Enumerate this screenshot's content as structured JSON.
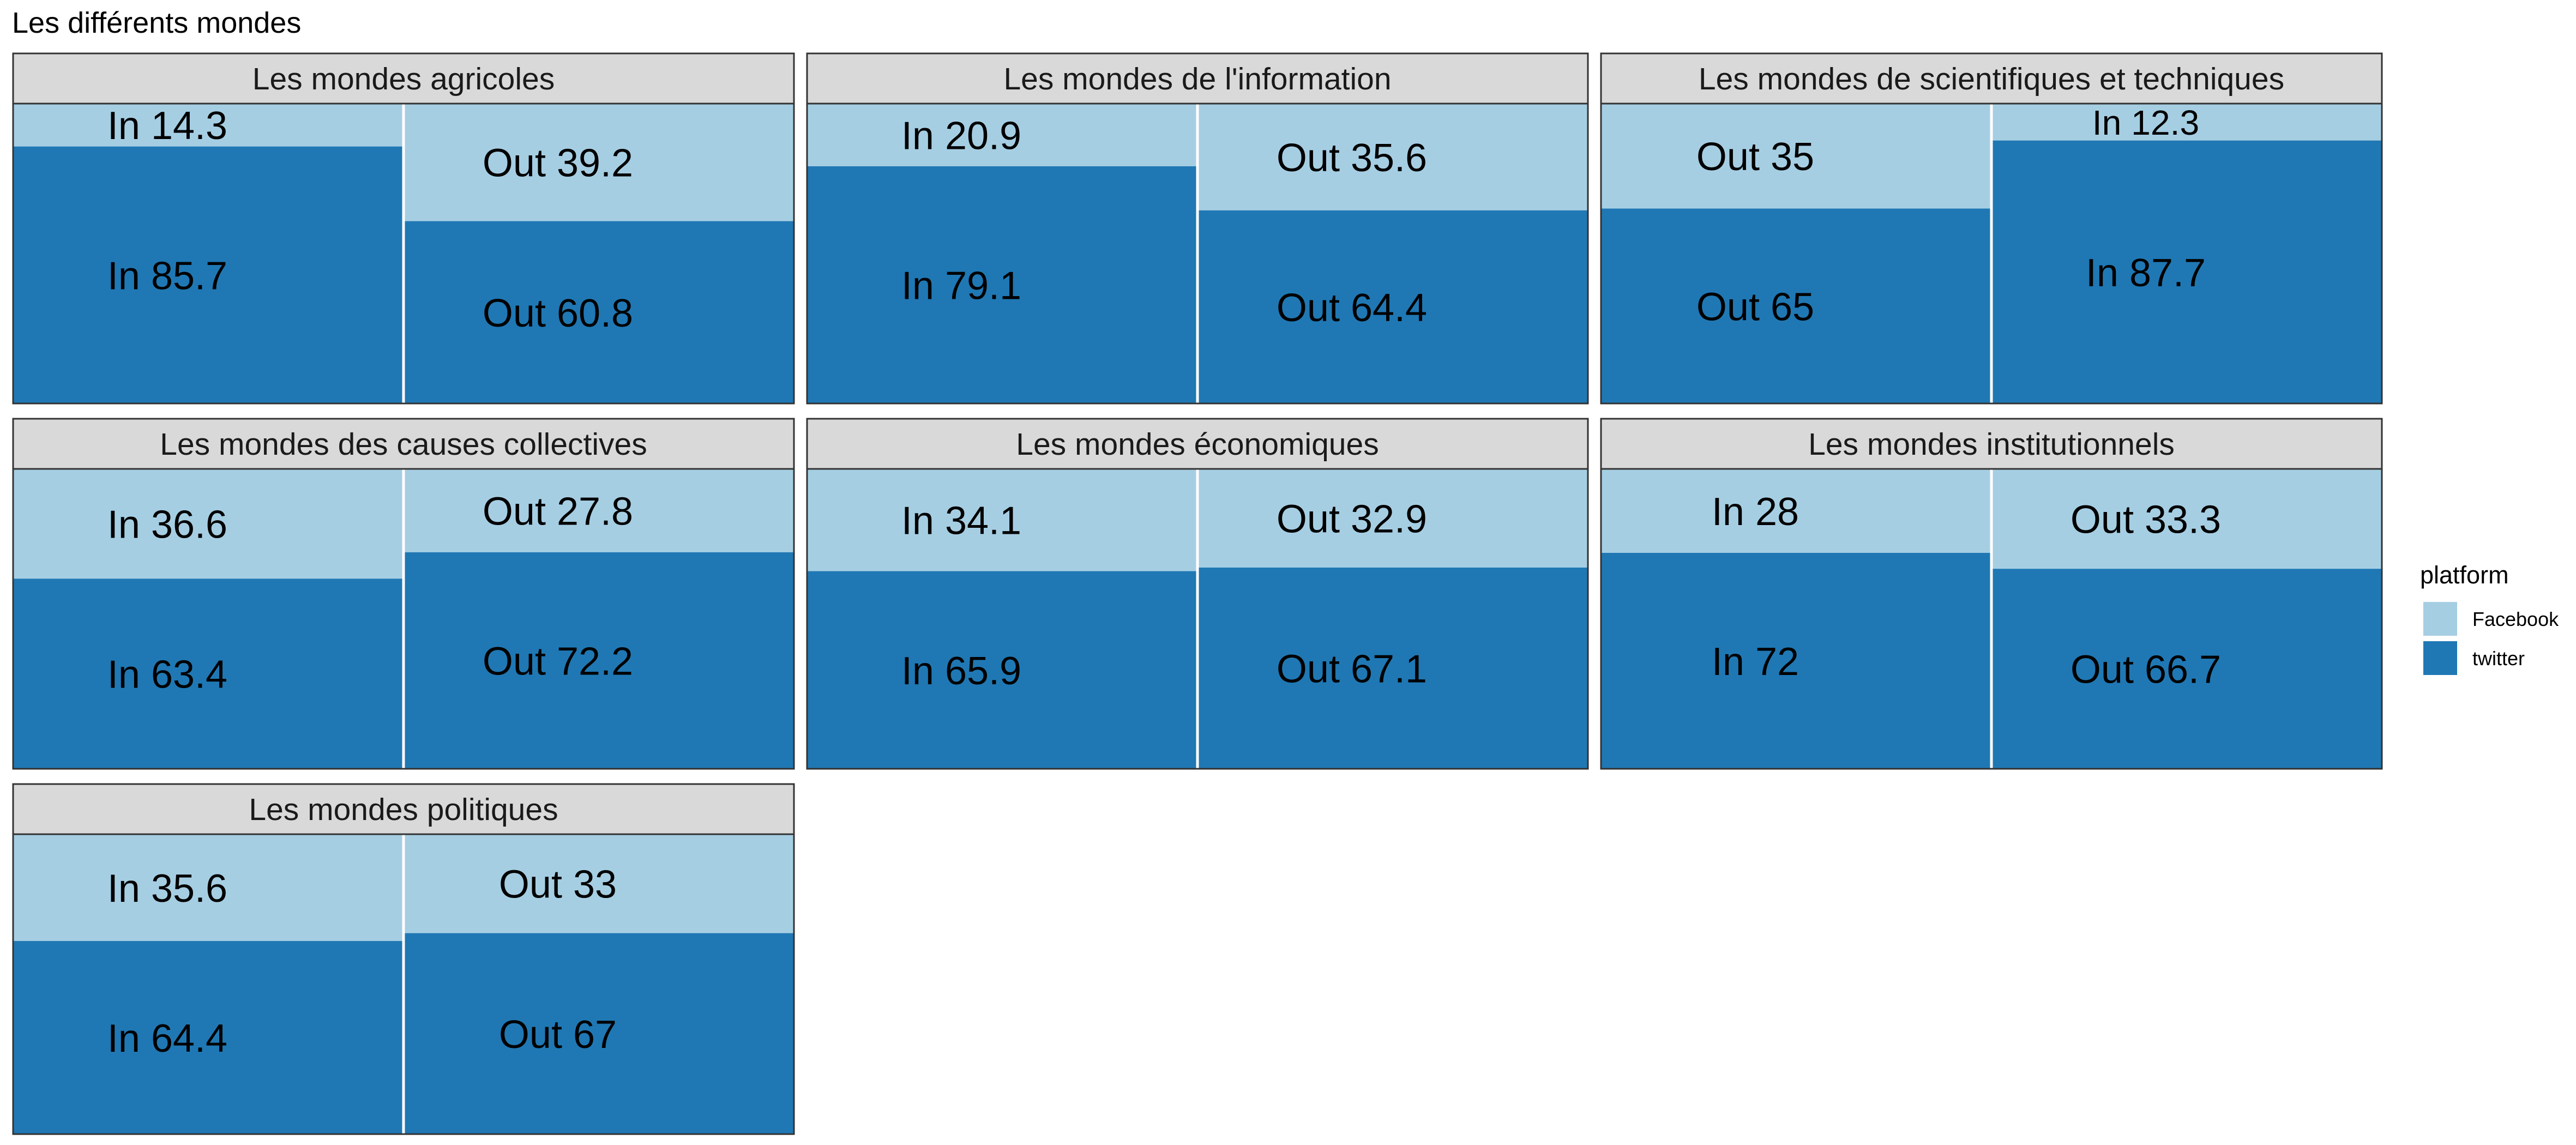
{
  "chart_data": {
    "type": "bar",
    "title": "Les différents mondes",
    "legend": {
      "title": "platform",
      "position": "right",
      "entries": [
        {
          "name": "Facebook",
          "color": "#a6cee3"
        },
        {
          "name": "twitter",
          "color": "#1f78b4"
        }
      ]
    },
    "panels": [
      {
        "title": "Les mondes agricoles",
        "columns": [
          {
            "facebook": "In 14.3",
            "twitter": "In 85.7",
            "facebook_value": 14.3,
            "twitter_value": 85.7
          },
          {
            "facebook": "Out 39.2",
            "twitter": "Out 60.8",
            "facebook_value": 39.2,
            "twitter_value": 60.8
          }
        ]
      },
      {
        "title": "Les mondes de l'information",
        "columns": [
          {
            "facebook": "In 20.9",
            "twitter": "In 79.1",
            "facebook_value": 20.9,
            "twitter_value": 79.1
          },
          {
            "facebook": "Out 35.6",
            "twitter": "Out 64.4",
            "facebook_value": 35.6,
            "twitter_value": 64.4
          }
        ]
      },
      {
        "title": "Les mondes de scientifiques et techniques",
        "columns": [
          {
            "facebook": "Out 35",
            "twitter": "Out 65",
            "facebook_value": 35,
            "twitter_value": 65
          },
          {
            "facebook": "In 12.3",
            "twitter": "In 87.7",
            "facebook_value": 12.3,
            "twitter_value": 87.7
          }
        ]
      },
      {
        "title": "Les mondes des causes collectives",
        "columns": [
          {
            "facebook": "In 36.6",
            "twitter": "In 63.4",
            "facebook_value": 36.6,
            "twitter_value": 63.4
          },
          {
            "facebook": "Out 27.8",
            "twitter": "Out 72.2",
            "facebook_value": 27.8,
            "twitter_value": 72.2
          }
        ]
      },
      {
        "title": "Les mondes économiques",
        "columns": [
          {
            "facebook": "In 34.1",
            "twitter": "In 65.9",
            "facebook_value": 34.1,
            "twitter_value": 65.9
          },
          {
            "facebook": "Out 32.9",
            "twitter": "Out 67.1",
            "facebook_value": 32.9,
            "twitter_value": 67.1
          }
        ]
      },
      {
        "title": "Les mondes institutionnels",
        "columns": [
          {
            "facebook": "In 28",
            "twitter": "In 72",
            "facebook_value": 28,
            "twitter_value": 72
          },
          {
            "facebook": "Out 33.3",
            "twitter": "Out 66.7",
            "facebook_value": 33.3,
            "twitter_value": 66.7
          }
        ]
      },
      {
        "title": "Les mondes politiques",
        "columns": [
          {
            "facebook": "In 35.6",
            "twitter": "In 64.4",
            "facebook_value": 35.6,
            "twitter_value": 64.4
          },
          {
            "facebook": "Out 33",
            "twitter": "Out 67",
            "facebook_value": 33,
            "twitter_value": 67
          }
        ]
      }
    ]
  }
}
